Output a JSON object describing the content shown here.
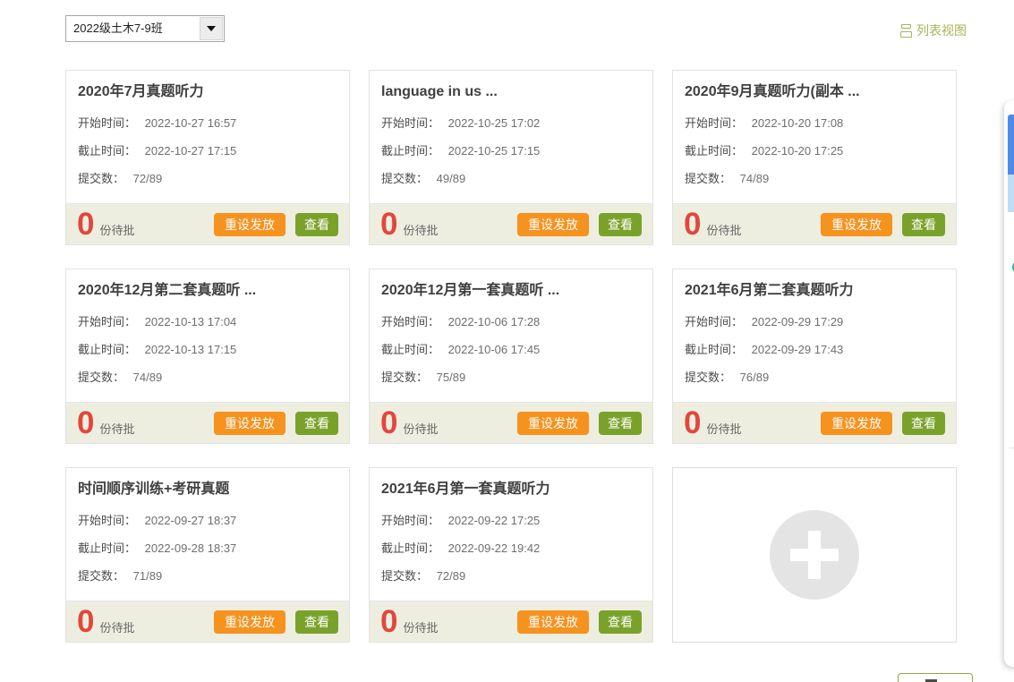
{
  "header": {
    "class_select": {
      "value": "2022级土木7-9班"
    },
    "list_view": {
      "label": "列表视图"
    }
  },
  "labels": {
    "start": "开始时间：",
    "end": "截止时间：",
    "submitted": "提交数：",
    "pending_suffix": "份待批",
    "reset_button": "重设发放",
    "view_button": "查看"
  },
  "cards": [
    {
      "title": "2020年7月真题听力",
      "start": "2022-10-27 16:57",
      "end": "2022-10-27 17:15",
      "submitted": "72/89",
      "pending": "0"
    },
    {
      "title": "language in us ...",
      "start": "2022-10-25 17:02",
      "end": "2022-10-25 17:15",
      "submitted": "49/89",
      "pending": "0"
    },
    {
      "title": "2020年9月真题听力(副本 ...",
      "start": "2022-10-20 17:08",
      "end": "2022-10-20 17:25",
      "submitted": "74/89",
      "pending": "0"
    },
    {
      "title": "2020年12月第二套真题听 ...",
      "start": "2022-10-13 17:04",
      "end": "2022-10-13 17:15",
      "submitted": "74/89",
      "pending": "0"
    },
    {
      "title": "2020年12月第一套真题听 ...",
      "start": "2022-10-06 17:28",
      "end": "2022-10-06 17:45",
      "submitted": "75/89",
      "pending": "0"
    },
    {
      "title": "2021年6月第二套真题听力",
      "start": "2022-09-29 17:29",
      "end": "2022-09-29 17:43",
      "submitted": "76/89",
      "pending": "0"
    },
    {
      "title": "时间顺序训练+考研真题",
      "start": "2022-09-27 18:37",
      "end": "2022-09-28 18:37",
      "submitted": "71/89",
      "pending": "0"
    },
    {
      "title": "2021年6月第一套真题听力",
      "start": "2022-09-22 17:25",
      "end": "2022-09-22 19:42",
      "submitted": "72/89",
      "pending": "0"
    }
  ],
  "colors": {
    "accent_orange": "#f6921e",
    "accent_green": "#7aa22a",
    "pending_red": "#e2473c",
    "link_olive": "#a9b356",
    "footer_beige": "#eeeee0",
    "widget_blue": "#4d8bea",
    "widget_light_blue": "#bfdcf5",
    "widget_teal": "#2fb9a3"
  }
}
